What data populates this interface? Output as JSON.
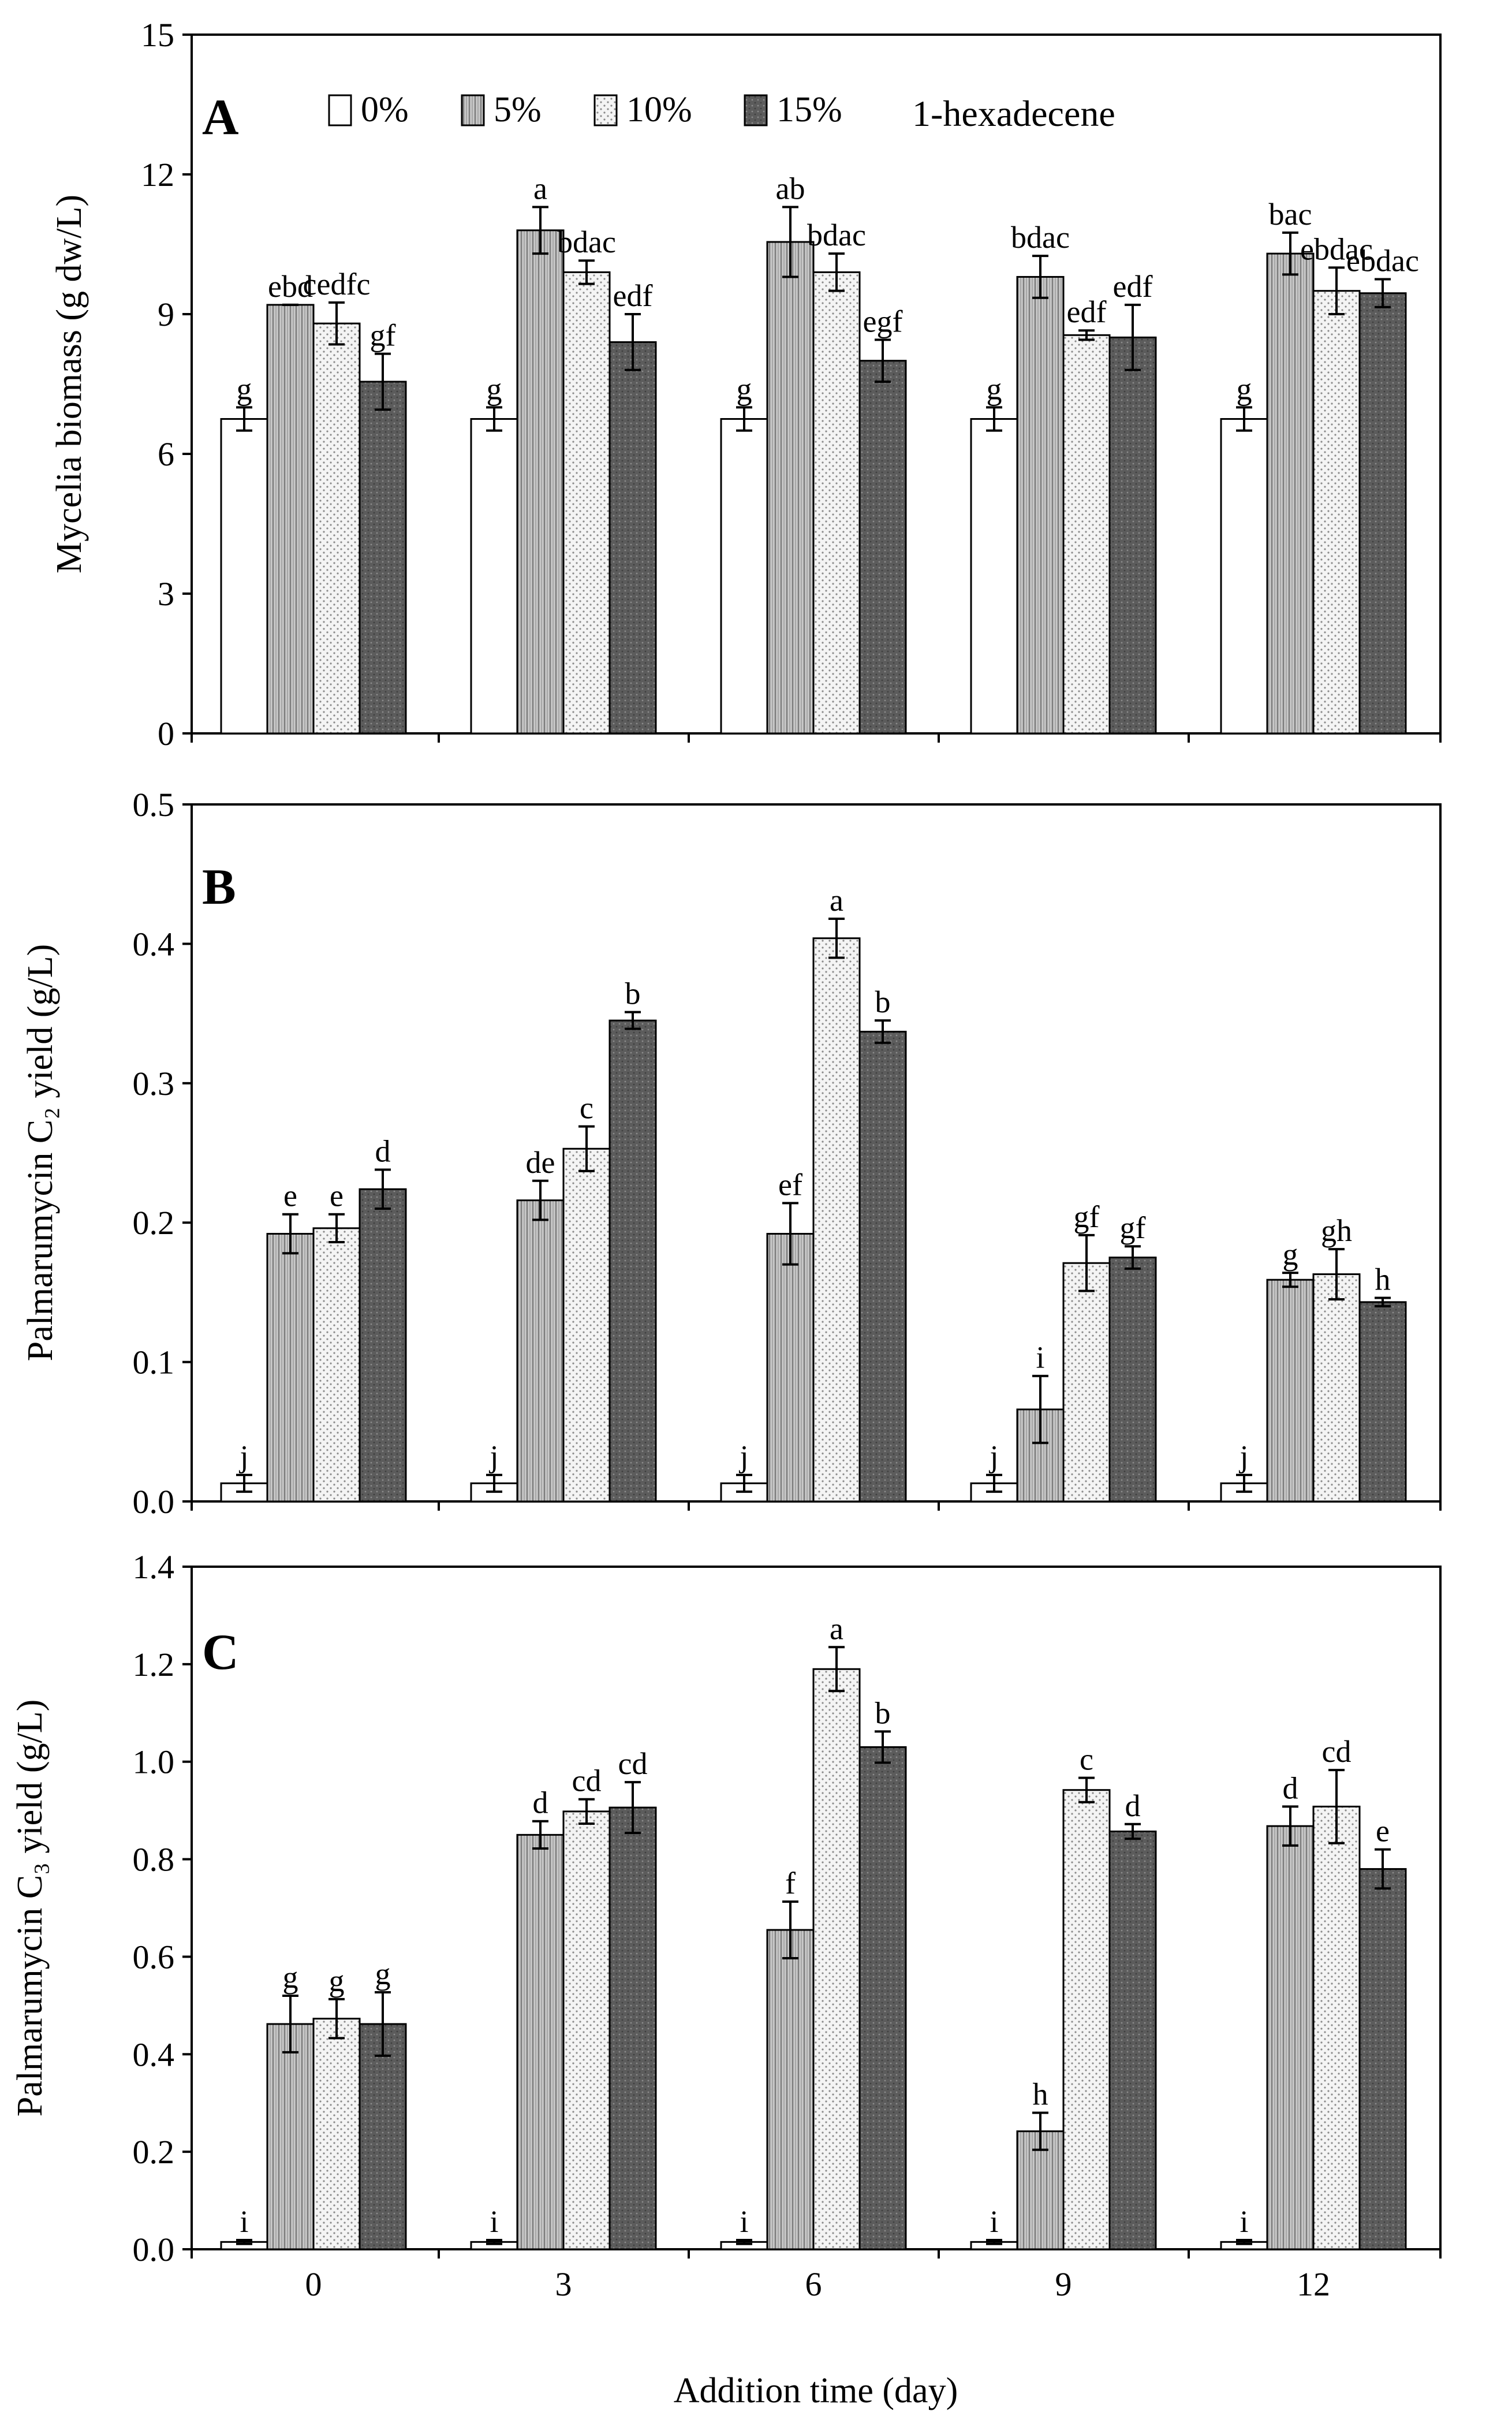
{
  "legend": {
    "title": "1-hexadecene",
    "entries": [
      "0%",
      "5%",
      "10%",
      "15%"
    ]
  },
  "x_axis": {
    "label": "Addition time (day)",
    "categories": [
      "0",
      "3",
      "6",
      "9",
      "12"
    ]
  },
  "chart_data": [
    {
      "type": "bar",
      "panel": "A",
      "ylabel": "Mycelia biomass (g dw/L)",
      "ylim": [
        0,
        15
      ],
      "yticks": [
        "0",
        "3",
        "6",
        "9",
        "12",
        "15"
      ],
      "categories": [
        "0",
        "3",
        "6",
        "9",
        "12"
      ],
      "series": [
        {
          "name": "0%",
          "values": [
            6.75,
            6.75,
            6.75,
            6.75,
            6.75
          ],
          "errors": [
            0.25,
            0.25,
            0.25,
            0.25,
            0.25
          ],
          "letters": [
            "g",
            "g",
            "g",
            "g",
            "g"
          ]
        },
        {
          "name": "5%",
          "values": [
            9.2,
            10.8,
            10.55,
            9.8,
            10.3
          ],
          "errors": [
            0.0,
            0.5,
            0.75,
            0.45,
            0.45
          ],
          "letters": [
            "ebd",
            "a",
            "ab",
            "bdac",
            "bac"
          ]
        },
        {
          "name": "10%",
          "values": [
            8.8,
            9.9,
            9.9,
            8.55,
            9.5
          ],
          "errors": [
            0.45,
            0.25,
            0.4,
            0.1,
            0.5
          ],
          "letters": [
            "cedfc",
            "bdac",
            "bdac",
            "edf",
            "ebdac"
          ]
        },
        {
          "name": "15%",
          "values": [
            7.55,
            8.4,
            8.0,
            8.5,
            9.45
          ],
          "errors": [
            0.6,
            0.6,
            0.45,
            0.7,
            0.3
          ],
          "letters": [
            "gf",
            "edf",
            "egf",
            "edf",
            "ebdac"
          ]
        }
      ]
    },
    {
      "type": "bar",
      "panel": "B",
      "ylabel": "Palmarumycin C₂ yield (g/L)",
      "ylim": [
        0,
        0.5
      ],
      "yticks": [
        "0.0",
        "0.1",
        "0.2",
        "0.3",
        "0.4",
        "0.5"
      ],
      "categories": [
        "0",
        "3",
        "6",
        "9",
        "12"
      ],
      "series": [
        {
          "name": "0%",
          "values": [
            0.013,
            0.013,
            0.013,
            0.013,
            0.013
          ],
          "errors": [
            0.006,
            0.006,
            0.006,
            0.006,
            0.006
          ],
          "letters": [
            "j",
            "j",
            "j",
            "j",
            "j"
          ]
        },
        {
          "name": "5%",
          "values": [
            0.192,
            0.216,
            0.192,
            0.066,
            0.159
          ],
          "errors": [
            0.014,
            0.014,
            0.022,
            0.024,
            0.005
          ],
          "letters": [
            "e",
            "de",
            "ef",
            "i",
            "g"
          ]
        },
        {
          "name": "10%",
          "values": [
            0.196,
            0.253,
            0.404,
            0.171,
            0.163
          ],
          "errors": [
            0.01,
            0.016,
            0.014,
            0.02,
            0.018
          ],
          "letters": [
            "e",
            "c",
            "a",
            "gf",
            "gh"
          ]
        },
        {
          "name": "15%",
          "values": [
            0.224,
            0.345,
            0.337,
            0.175,
            0.143
          ],
          "errors": [
            0.014,
            0.006,
            0.008,
            0.008,
            0.003
          ],
          "letters": [
            "d",
            "b",
            "b",
            "gf",
            "h"
          ]
        }
      ]
    },
    {
      "type": "bar",
      "panel": "C",
      "ylabel": "Palmarumycin C₃ yield (g/L)",
      "ylim": [
        0,
        1.4
      ],
      "yticks": [
        "0.0",
        "0.2",
        "0.4",
        "0.6",
        "0.8",
        "1.0",
        "1.2",
        "1.4"
      ],
      "categories": [
        "0",
        "3",
        "6",
        "9",
        "12"
      ],
      "series": [
        {
          "name": "0%",
          "values": [
            0.015,
            0.015,
            0.015,
            0.015,
            0.015
          ],
          "errors": [
            0.004,
            0.004,
            0.004,
            0.004,
            0.004
          ],
          "letters": [
            "i",
            "i",
            "i",
            "i",
            "i"
          ]
        },
        {
          "name": "5%",
          "values": [
            0.462,
            0.85,
            0.655,
            0.242,
            0.868
          ],
          "errors": [
            0.058,
            0.028,
            0.058,
            0.038,
            0.04
          ],
          "letters": [
            "g",
            "d",
            "f",
            "h",
            "d"
          ]
        },
        {
          "name": "10%",
          "values": [
            0.473,
            0.898,
            1.19,
            0.942,
            0.908
          ],
          "errors": [
            0.04,
            0.025,
            0.045,
            0.025,
            0.075
          ],
          "letters": [
            "g",
            "cd",
            "a",
            "c",
            "cd"
          ]
        },
        {
          "name": "15%",
          "values": [
            0.462,
            0.906,
            1.03,
            0.857,
            0.78
          ],
          "errors": [
            0.065,
            0.052,
            0.032,
            0.015,
            0.04
          ],
          "letters": [
            "g",
            "cd",
            "b",
            "d",
            "e"
          ]
        }
      ]
    }
  ]
}
